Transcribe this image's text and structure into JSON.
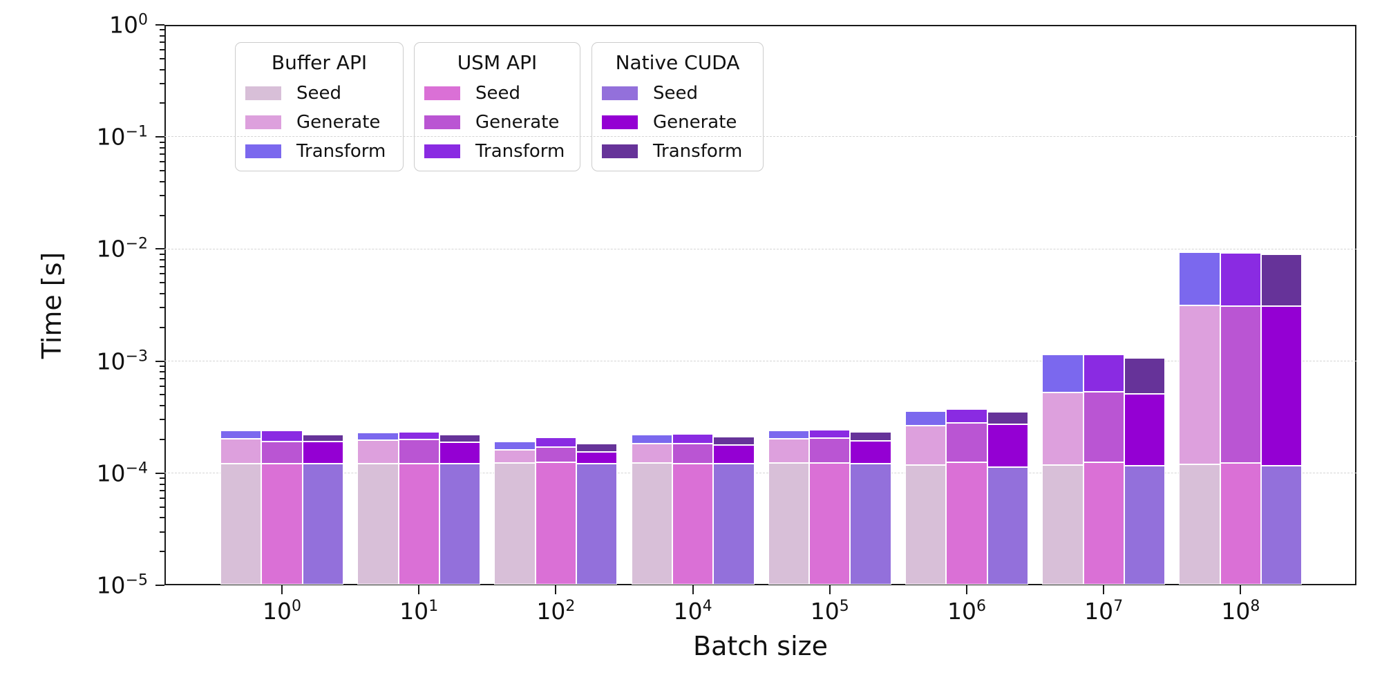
{
  "figure": {
    "xlabel": "Batch size",
    "ylabel": "Time [s]"
  },
  "legends": [
    {
      "title": "Buffer API",
      "entries": [
        {
          "label": "Seed",
          "color": "#D8BFD8"
        },
        {
          "label": "Generate",
          "color": "#DDA0DD"
        },
        {
          "label": "Transform",
          "color": "#7B68EE"
        }
      ]
    },
    {
      "title": "USM API",
      "entries": [
        {
          "label": "Seed",
          "color": "#DA70D6"
        },
        {
          "label": "Generate",
          "color": "#BA55D3"
        },
        {
          "label": "Transform",
          "color": "#8A2BE2"
        }
      ]
    },
    {
      "title": "Native CUDA",
      "entries": [
        {
          "label": "Seed",
          "color": "#9370DB"
        },
        {
          "label": "Generate",
          "color": "#9400D3"
        },
        {
          "label": "Transform",
          "color": "#663399"
        }
      ]
    }
  ],
  "chart_data": {
    "type": "bar",
    "stacked": true,
    "log_y": true,
    "title": "",
    "xlabel": "Batch size",
    "ylabel": "Time [s]",
    "ylim": [
      1e-05,
      1
    ],
    "grid": "major y gridlines, dashed light gray",
    "legend_position": "three titled boxes, upper left inside axes",
    "categories": [
      "10^0",
      "10^1",
      "10^2",
      "10^4",
      "10^5",
      "10^6",
      "10^7",
      "10^8"
    ],
    "y_ticklabels": [
      "10^0",
      "10^−1",
      "10^−2",
      "10^−3",
      "10^−4",
      "10^−5"
    ],
    "y_tick_exponents": [
      0,
      -1,
      -2,
      -3,
      -4,
      -5
    ],
    "unit": "seconds",
    "groups": [
      {
        "name": "Buffer API",
        "series": [
          {
            "name": "Seed",
            "color": "#D8BFD8",
            "values": [
              0.000122,
              0.000122,
              0.000124,
              0.000124,
              0.000124,
              0.000119,
              0.000118,
              0.00012
            ]
          },
          {
            "name": "Generate",
            "color": "#DDA0DD",
            "values": [
              8.1e-05,
              7.6e-05,
              3.8e-05,
              6e-05,
              7.9e-05,
              0.000148,
              0.00041,
              0.003
            ]
          },
          {
            "name": "Transform",
            "color": "#7B68EE",
            "values": [
              3.8e-05,
              3.3e-05,
              3e-05,
              3.8e-05,
              3.8e-05,
              9.3e-05,
              0.00061,
              0.0062
            ]
          }
        ]
      },
      {
        "name": "USM API",
        "series": [
          {
            "name": "Seed",
            "color": "#DA70D6",
            "values": [
              0.000121,
              0.000122,
              0.000126,
              0.000122,
              0.000124,
              0.000126,
              0.000126,
              0.000124
            ]
          },
          {
            "name": "Generate",
            "color": "#BA55D3",
            "values": [
              7.1e-05,
              7.8e-05,
              4.4e-05,
              6.2e-05,
              8.2e-05,
              0.000157,
              0.000405,
              0.00298
            ]
          },
          {
            "name": "Transform",
            "color": "#8A2BE2",
            "values": [
              4.9e-05,
              3.5e-05,
              4e-05,
              4e-05,
              3.9e-05,
              9.2e-05,
              0.00061,
              0.0061
            ]
          }
        ]
      },
      {
        "name": "Native CUDA",
        "series": [
          {
            "name": "Seed",
            "color": "#9370DB",
            "values": [
              0.000121,
              0.000121,
              0.000121,
              0.000121,
              0.000121,
              0.000114,
              0.000117,
              0.000117
            ]
          },
          {
            "name": "Generate",
            "color": "#9400D3",
            "values": [
              7.1e-05,
              6.9e-05,
              3.4e-05,
              5.8e-05,
              7.4e-05,
              0.00016,
              0.00039,
              0.00298
            ]
          },
          {
            "name": "Transform",
            "color": "#663399",
            "values": [
              3e-05,
              3e-05,
              2.9e-05,
              3.4e-05,
              3.9e-05,
              8.1e-05,
              0.00056,
              0.0059
            ]
          }
        ]
      }
    ]
  }
}
